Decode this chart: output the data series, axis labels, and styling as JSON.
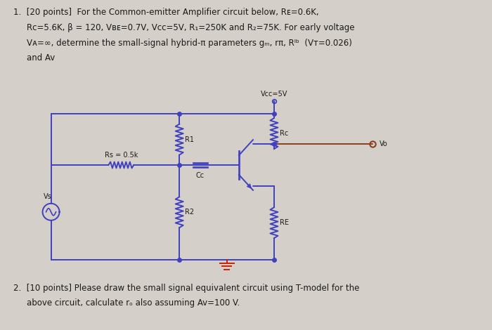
{
  "bg_color": "#d4cfc8",
  "text_color": "#1a1a1a",
  "wire_color": "#4040c0",
  "bjt_color": "#3030b0",
  "vo_wire_color": "#8b4020",
  "ground_color": "#cc2200",
  "fig_width": 7.0,
  "fig_height": 4.7,
  "vcc_label": "Vcc=5V",
  "rs_label": "Rs = 0.5k",
  "cc_label": "Cc",
  "r1_label": "R1",
  "r2_label": "R2",
  "rc_label": "Rc",
  "re_label": "RE",
  "vs_label": "Vs",
  "vo_label": "Vo"
}
